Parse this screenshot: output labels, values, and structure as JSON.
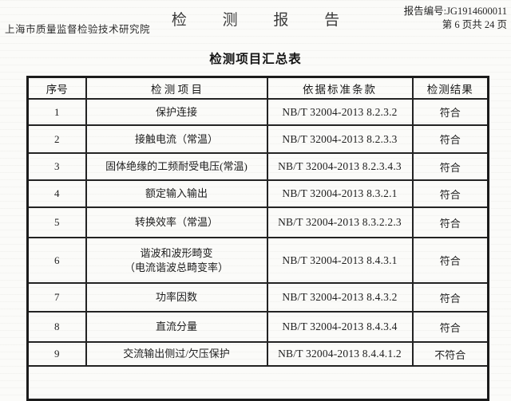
{
  "header": {
    "institution": "上海市质量监督检验技术研究院",
    "report_title": "检 测 报 告",
    "report_number": "报告编号:JG1914600011",
    "page_info": "第 6 页共 24 页"
  },
  "table": {
    "title": "检测项目汇总表",
    "columns": [
      "序号",
      "检 测 项 目",
      "依据标准条款",
      "检测结果"
    ],
    "rows": [
      {
        "no": "1",
        "item": "保护连接",
        "standard": "NB/T 32004-2013 8.2.3.2",
        "result": "符合"
      },
      {
        "no": "2",
        "item": "接触电流（常温）",
        "standard": "NB/T 32004-2013 8.2.3.3",
        "result": "符合"
      },
      {
        "no": "3",
        "item": "固体绝缘的工频耐受电压(常温)",
        "standard": "NB/T 32004-2013 8.2.3.4.3",
        "result": "符合"
      },
      {
        "no": "4",
        "item": "额定输入输出",
        "standard": "NB/T 32004-2013 8.3.2.1",
        "result": "符合"
      },
      {
        "no": "5",
        "item": "转换效率（常温）",
        "standard": "NB/T 32004-2013 8.3.2.2.3",
        "result": "符合"
      },
      {
        "no": "6",
        "item": "谐波和波形畸变",
        "item_line2": "（电流谐波总畸变率）",
        "standard": "NB/T 32004-2013 8.4.3.1",
        "result": "符合"
      },
      {
        "no": "7",
        "item": "功率因数",
        "standard": "NB/T 32004-2013 8.4.3.2",
        "result": "符合"
      },
      {
        "no": "8",
        "item": "直流分量",
        "standard": "NB/T 32004-2013 8.4.3.4",
        "result": "符合"
      },
      {
        "no": "9",
        "item": "交流输出侧过/欠压保护",
        "standard": "NB/T 32004-2013 8.4.4.1.2",
        "result": "不符合"
      }
    ]
  },
  "colors": {
    "paper": "#fbfbf9",
    "ink": "#1f1f1f",
    "table_border": "#1b1b1b"
  }
}
